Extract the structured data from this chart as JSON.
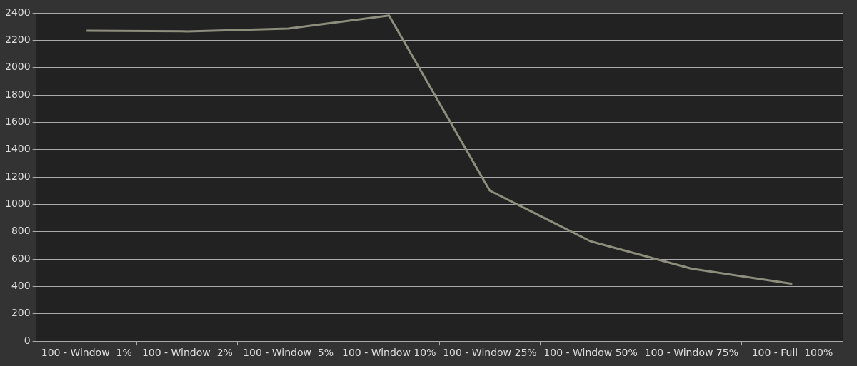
{
  "chart_data": {
    "type": "line",
    "categories": [
      "100 - Window  1%",
      "100 - Window  2%",
      "100 - Window  5%",
      "100 - Window 10%",
      "100 - Window 25%",
      "100 - Window 50%",
      "100 - Window 75%",
      "100 - Full  100%"
    ],
    "series": [
      {
        "color": "#8e8e7c",
        "values": [
          2270,
          2265,
          2285,
          2380,
          1100,
          730,
          530,
          420
        ]
      }
    ],
    "ylim": [
      0,
      2400
    ],
    "yticks": [
      0,
      200,
      400,
      600,
      800,
      1000,
      1200,
      1400,
      1600,
      1800,
      2000,
      2200,
      2400
    ],
    "grid": "y",
    "legend": false,
    "marker": "none"
  }
}
